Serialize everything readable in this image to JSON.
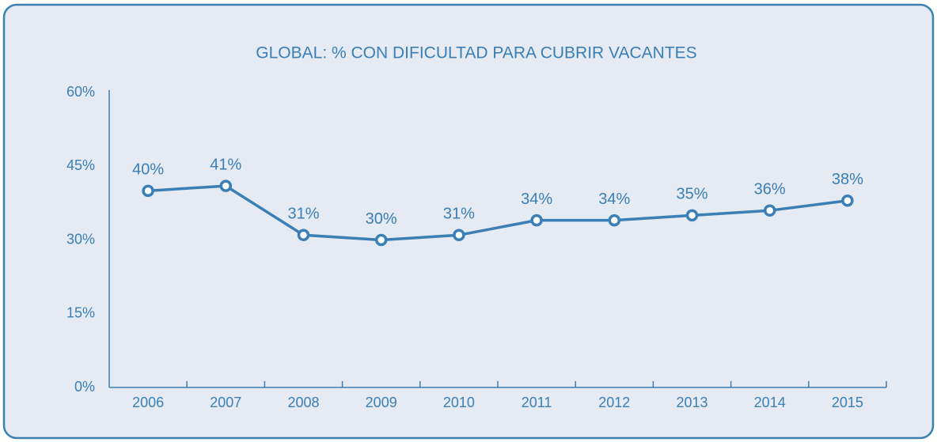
{
  "chart_data": {
    "type": "line",
    "title": "GLOBAL: % CON DIFICULTAD PARA CUBRIR VACANTES",
    "categories": [
      "2006",
      "2007",
      "2008",
      "2009",
      "2010",
      "2011",
      "2012",
      "2013",
      "2014",
      "2015"
    ],
    "series": [
      {
        "name": "Global",
        "color": "#3a7fb5",
        "values": [
          40,
          41,
          31,
          30,
          31,
          34,
          34,
          35,
          36,
          38
        ],
        "value_labels": [
          "40%",
          "41%",
          "31%",
          "30%",
          "31%",
          "34%",
          "34%",
          "35%",
          "36%",
          "38%"
        ]
      }
    ],
    "ylim": [
      0,
      60
    ],
    "yticks": [
      {
        "value": 0,
        "label": "0%"
      },
      {
        "value": 15,
        "label": "15%"
      },
      {
        "value": 30,
        "label": "30%"
      },
      {
        "value": 45,
        "label": "45%"
      },
      {
        "value": 60,
        "label": "60%"
      }
    ],
    "grid": false
  }
}
